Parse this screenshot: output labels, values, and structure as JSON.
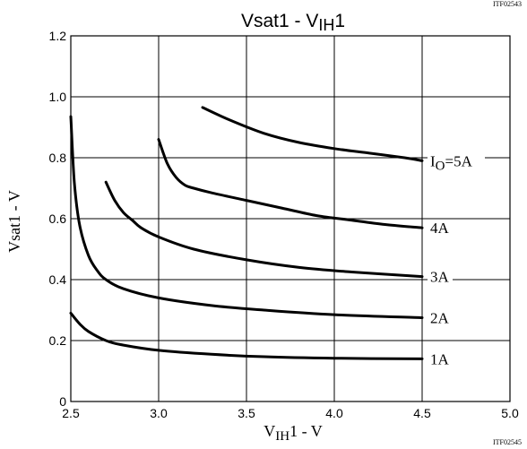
{
  "top_ref": "ITF02543",
  "bottom_ref": "ITF02545",
  "chart_data": {
    "type": "line",
    "title": "Vsat1 - VIH1",
    "title_parts": {
      "main": "Vsat1 - V",
      "sub": "IH",
      "suffix": "1"
    },
    "xlabel": "VIH1 - V",
    "xlabel_parts": {
      "main": "V",
      "sub": "IH",
      "suffix": "1 - V"
    },
    "ylabel": "Vsat1 - V",
    "xlim": [
      2.5,
      5.0
    ],
    "ylim": [
      0,
      1.2
    ],
    "x_ticks": [
      2.5,
      3.0,
      3.5,
      4.0,
      4.5,
      5.0
    ],
    "x_tick_labels": [
      "2.5",
      "3.0",
      "3.5",
      "4.0",
      "4.5",
      "5.0"
    ],
    "y_ticks": [
      0,
      0.2,
      0.4,
      0.6,
      0.8,
      1.0,
      1.2
    ],
    "y_tick_labels": [
      "0",
      "0.2",
      "0.4",
      "0.6",
      "0.8",
      "1.0",
      "1.2"
    ],
    "grid": true,
    "series": [
      {
        "name": "IO=5A",
        "label_parts": {
          "main": "I",
          "sub": "O",
          "suffix": "=5A"
        },
        "x": [
          3.25,
          3.4,
          3.6,
          3.8,
          4.0,
          4.2,
          4.4,
          4.5
        ],
        "y": [
          0.965,
          0.925,
          0.88,
          0.85,
          0.83,
          0.815,
          0.8,
          0.79
        ]
      },
      {
        "name": "4A",
        "x": [
          3.0,
          3.05,
          3.1,
          3.15,
          3.2,
          3.3,
          3.5,
          3.7,
          3.9,
          4.1,
          4.3,
          4.5
        ],
        "y": [
          0.86,
          0.78,
          0.735,
          0.71,
          0.7,
          0.685,
          0.66,
          0.635,
          0.61,
          0.595,
          0.58,
          0.57
        ]
      },
      {
        "name": "3A",
        "x": [
          2.7,
          2.75,
          2.8,
          2.85,
          2.9,
          3.0,
          3.2,
          3.5,
          3.8,
          4.1,
          4.5
        ],
        "y": [
          0.72,
          0.66,
          0.62,
          0.595,
          0.57,
          0.54,
          0.5,
          0.465,
          0.44,
          0.425,
          0.41
        ]
      },
      {
        "name": "2A",
        "x": [
          2.5,
          2.52,
          2.55,
          2.6,
          2.65,
          2.7,
          2.8,
          3.0,
          3.3,
          3.6,
          4.0,
          4.5
        ],
        "y": [
          0.935,
          0.72,
          0.58,
          0.48,
          0.43,
          0.4,
          0.37,
          0.34,
          0.315,
          0.3,
          0.285,
          0.275
        ]
      },
      {
        "name": "1A",
        "x": [
          2.5,
          2.55,
          2.6,
          2.7,
          2.8,
          3.0,
          3.3,
          3.6,
          4.0,
          4.5
        ],
        "y": [
          0.29,
          0.255,
          0.23,
          0.2,
          0.185,
          0.168,
          0.155,
          0.147,
          0.142,
          0.14
        ]
      }
    ]
  }
}
